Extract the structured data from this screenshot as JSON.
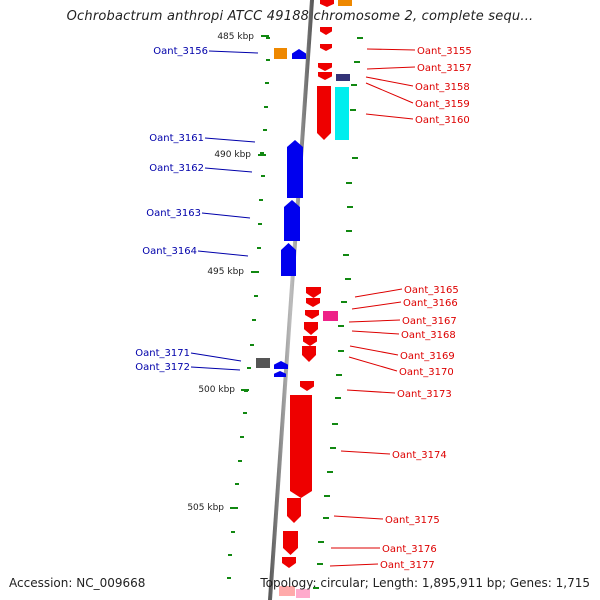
{
  "title": "Ochrobactrum anthropi ATCC 49188 chromosome 2, complete sequ...",
  "footer": {
    "accession": "Accession: NC_009668",
    "topology": "Topology: circular; Length: 1,895,911 bp; Genes: 1,715"
  },
  "colors": {
    "backbone": "#8c8c8c",
    "tick": "#118811",
    "forward_label": "#dd0000",
    "reverse_label": "#0000aa"
  },
  "scale_labels": [
    "485 kbp",
    "490 kbp",
    "495 kbp",
    "500 kbp",
    "505 kbp"
  ],
  "reverse_genes": [
    {
      "label": "Oant_3156"
    },
    {
      "label": "Oant_3161"
    },
    {
      "label": "Oant_3162"
    },
    {
      "label": "Oant_3163"
    },
    {
      "label": "Oant_3164"
    },
    {
      "label": "Oant_3171"
    },
    {
      "label": "Oant_3172"
    }
  ],
  "forward_genes": [
    {
      "label": "Oant_3155"
    },
    {
      "label": "Oant_3157"
    },
    {
      "label": "Oant_3158"
    },
    {
      "label": "Oant_3159"
    },
    {
      "label": "Oant_3160"
    },
    {
      "label": "Oant_3165"
    },
    {
      "label": "Oant_3166"
    },
    {
      "label": "Oant_3167"
    },
    {
      "label": "Oant_3168"
    },
    {
      "label": "Oant_3169"
    },
    {
      "label": "Oant_3170"
    },
    {
      "label": "Oant_3173"
    },
    {
      "label": "Oant_3174"
    },
    {
      "label": "Oant_3175"
    },
    {
      "label": "Oant_3176"
    },
    {
      "label": "Oant_3177"
    }
  ]
}
